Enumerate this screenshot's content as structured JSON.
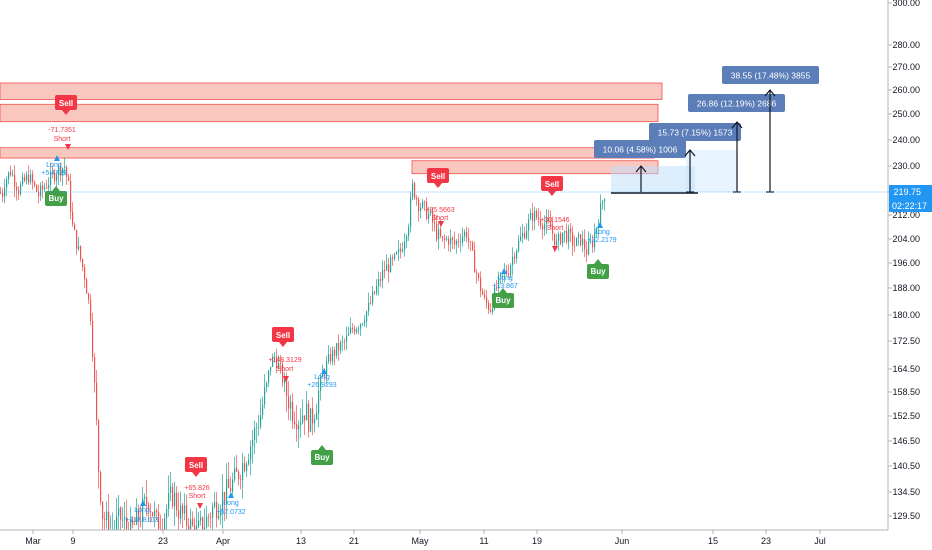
{
  "chart_data": {
    "type": "candlestick",
    "price_axis": {
      "ticks": [
        "300.00",
        "280.00",
        "270.00",
        "260.00",
        "250.00",
        "240.00",
        "230.00",
        "220.00",
        "212.00",
        "204.00",
        "196.00",
        "188.00",
        "180.00",
        "172.50",
        "164.50",
        "158.50",
        "152.50",
        "146.50",
        "140.50",
        "134.50",
        "129.50"
      ],
      "current_price": "219.75",
      "countdown": "02:22:17",
      "scale": "log"
    },
    "time_axis": {
      "ticks": [
        "Mar",
        "9",
        "23",
        "Apr",
        "13",
        "21",
        "May",
        "11",
        "19",
        "Jun",
        "15",
        "23",
        "Jul"
      ]
    },
    "series": [
      {
        "name": "price",
        "points": [
          [
            4,
            224
          ],
          [
            10,
            228
          ],
          [
            18,
            221
          ],
          [
            28,
            226
          ],
          [
            38,
            219
          ],
          [
            48,
            224
          ],
          [
            56,
            228
          ],
          [
            64,
            230
          ],
          [
            68,
            222
          ],
          [
            72,
            208
          ],
          [
            78,
            200
          ],
          [
            84,
            192
          ],
          [
            90,
            180
          ],
          [
            94,
            160
          ],
          [
            98,
            140
          ],
          [
            102,
            130
          ],
          [
            110,
            126
          ],
          [
            120,
            129
          ],
          [
            130,
            126
          ],
          [
            140,
            130
          ],
          [
            148,
            133
          ],
          [
            156,
            128
          ],
          [
            164,
            130
          ],
          [
            172,
            134
          ],
          [
            180,
            130
          ],
          [
            188,
            128
          ],
          [
            196,
            126
          ],
          [
            204,
            128
          ],
          [
            212,
            131
          ],
          [
            220,
            133
          ],
          [
            228,
            135
          ],
          [
            236,
            138
          ],
          [
            244,
            142
          ],
          [
            252,
            147
          ],
          [
            260,
            153
          ],
          [
            266,
            160
          ],
          [
            270,
            166
          ],
          [
            274,
            168
          ],
          [
            280,
            164
          ],
          [
            286,
            158
          ],
          [
            292,
            154
          ],
          [
            298,
            152
          ],
          [
            304,
            154
          ],
          [
            310,
            151
          ],
          [
            316,
            156
          ],
          [
            322,
            163
          ],
          [
            330,
            168
          ],
          [
            336,
            170
          ],
          [
            344,
            172
          ],
          [
            352,
            176
          ],
          [
            360,
            178
          ],
          [
            368,
            182
          ],
          [
            376,
            188
          ],
          [
            384,
            194
          ],
          [
            392,
            196
          ],
          [
            400,
            200
          ],
          [
            408,
            210
          ],
          [
            412,
            222
          ],
          [
            418,
            216
          ],
          [
            424,
            214
          ],
          [
            430,
            211
          ],
          [
            436,
            206
          ],
          [
            442,
            203
          ],
          [
            448,
            204
          ],
          [
            454,
            202
          ],
          [
            460,
            205
          ],
          [
            466,
            206
          ],
          [
            472,
            198
          ],
          [
            478,
            190
          ],
          [
            484,
            184
          ],
          [
            490,
            182
          ],
          [
            496,
            188
          ],
          [
            502,
            192
          ],
          [
            508,
            194
          ],
          [
            514,
            200
          ],
          [
            520,
            204
          ],
          [
            526,
            208
          ],
          [
            532,
            212
          ],
          [
            538,
            211
          ],
          [
            544,
            209
          ],
          [
            550,
            208
          ],
          [
            556,
            202
          ],
          [
            562,
            206
          ],
          [
            568,
            205
          ],
          [
            574,
            202
          ],
          [
            580,
            204
          ],
          [
            586,
            200
          ],
          [
            592,
            203
          ],
          [
            598,
            211
          ],
          [
            604,
            219.75
          ]
        ]
      }
    ],
    "signals": [
      {
        "type": "sell",
        "label": "Sell",
        "note": "-71.7351",
        "dir": "Short"
      },
      {
        "type": "buy",
        "label": "Buy",
        "note": "+5.4739",
        "dir": "Long"
      },
      {
        "type": "sell",
        "label": "Sell",
        "note": "+85.5663",
        "dir": "Short"
      },
      {
        "type": "sell",
        "label": "Sell",
        "note": "+30.1546",
        "dir": "Short"
      },
      {
        "type": "buy",
        "label": "Buy",
        "note": "+22.2179",
        "dir": "Long"
      },
      {
        "type": "buy",
        "label": "Buy",
        "note": "+13.867",
        "dir": "Long"
      },
      {
        "type": "sell",
        "label": "Sell",
        "note": "+148.3129",
        "dir": "Short"
      },
      {
        "type": "buy",
        "label": "Buy",
        "note": "+26.9293",
        "dir": "Long"
      },
      {
        "type": "sell",
        "label": "Sell",
        "note": "+65.826",
        "dir": "Short"
      },
      {
        "type": "buy",
        "label": "Buy",
        "note": "+118.8103",
        "dir": "Long"
      },
      {
        "type": "buy",
        "label": "Buy",
        "note": "+57.0732",
        "dir": "Long"
      }
    ],
    "resistance_zones": [
      [
        256,
        263
      ],
      [
        247,
        254
      ],
      [
        233,
        237
      ],
      [
        227,
        232
      ]
    ],
    "projections": [
      "10.06 (4.58%) 1006",
      "15.73 (7.15%) 1573",
      "26.86 (12.19%) 2686",
      "38.55 (17.48%) 3855"
    ],
    "colors": {
      "up": "#26a69a",
      "down": "#ef5350",
      "buy": "#43a047",
      "sell": "#f23645",
      "long": "#2196f3",
      "proj": "#5b7db8",
      "price_line": "#2196f3"
    }
  }
}
